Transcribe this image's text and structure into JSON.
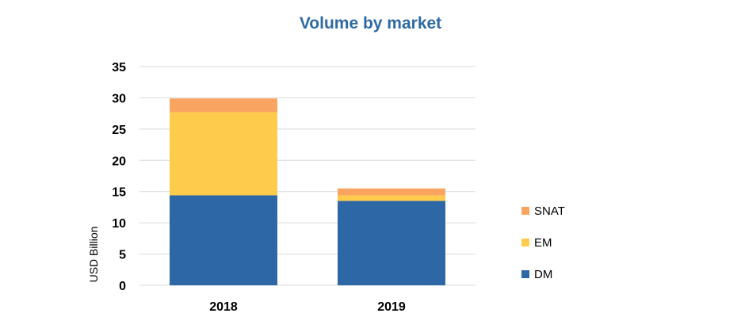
{
  "chart_data": {
    "type": "bar",
    "stacked": true,
    "title": "Volume by market",
    "xlabel": "",
    "ylabel": "USD Billion",
    "categories": [
      "2018",
      "2019"
    ],
    "series": [
      {
        "name": "DM",
        "values": [
          14.4,
          13.5
        ],
        "color": "#2e67a6"
      },
      {
        "name": "EM",
        "values": [
          13.3,
          0.9
        ],
        "color": "#fecb4c"
      },
      {
        "name": "SNAT",
        "values": [
          2.2,
          1.1
        ],
        "color": "#f9a561"
      }
    ],
    "ylim": [
      0,
      35
    ],
    "yticks": [
      "0",
      "5",
      "10",
      "15",
      "20",
      "25",
      "30",
      "35"
    ],
    "grid": true,
    "legend_position": "right"
  }
}
